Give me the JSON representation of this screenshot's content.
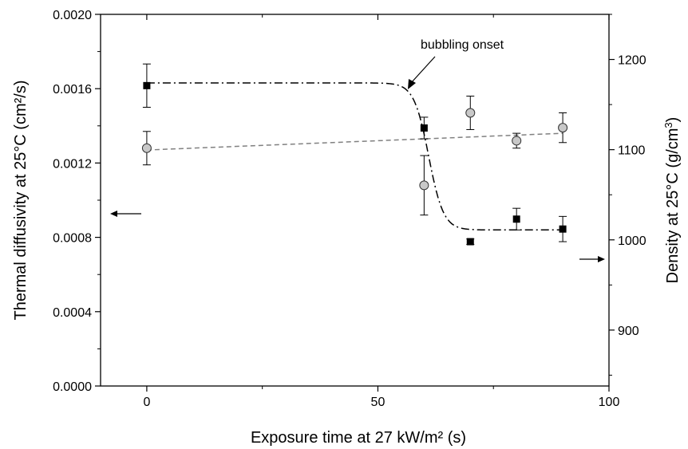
{
  "chart_data": {
    "type": "scatter",
    "title": "",
    "xlabel": "Exposure time at 27 kW/m² (s)",
    "ylabel_left": "Thermal diffusivity at 25°C (cm²/s)",
    "ylabel_right": "Density at 25°C (g/cm³)",
    "xlim": [
      -10,
      100
    ],
    "ylim_left": [
      0,
      0.002
    ],
    "ylim_right": [
      838,
      1250
    ],
    "x_ticks": [
      0,
      50,
      100
    ],
    "y_left_ticks": [
      "0.0000",
      "0.0004",
      "0.0008",
      "0.0012",
      "0.0016",
      "0.0020"
    ],
    "y_right_ticks": [
      900,
      1000,
      1100,
      1200
    ],
    "grid": false,
    "series": [
      {
        "axis": "left",
        "marker": "circle",
        "color": "#c8c8c8",
        "x": [
          0,
          60,
          70,
          80,
          90
        ],
        "y": [
          0.00128,
          0.00108,
          0.00147,
          0.00132,
          0.00139
        ],
        "err": [
          9e-05,
          0.00016,
          9e-05,
          4e-05,
          8e-05
        ]
      },
      {
        "axis": "right",
        "marker": "square",
        "color": "#000000",
        "x": [
          0,
          60,
          70,
          80,
          90
        ],
        "y": [
          1171,
          1124,
          998,
          1023,
          1012
        ],
        "err": [
          24,
          12,
          3,
          12,
          14
        ]
      }
    ],
    "fits": [
      {
        "axis": "left",
        "style": "dashed",
        "color": "#808080",
        "x": [
          0,
          90
        ],
        "y": [
          0.00127,
          0.00136
        ]
      },
      {
        "axis": "right",
        "style": "dash-dot",
        "color": "#000000",
        "type": "sigmoid",
        "x_range": [
          0,
          90
        ],
        "top": 1174,
        "bottom": 1011,
        "center": 61,
        "width": 1.6
      }
    ],
    "annotations": [
      {
        "text": "bubbling onset",
        "x": 54,
        "y_right": 1186
      }
    ]
  }
}
